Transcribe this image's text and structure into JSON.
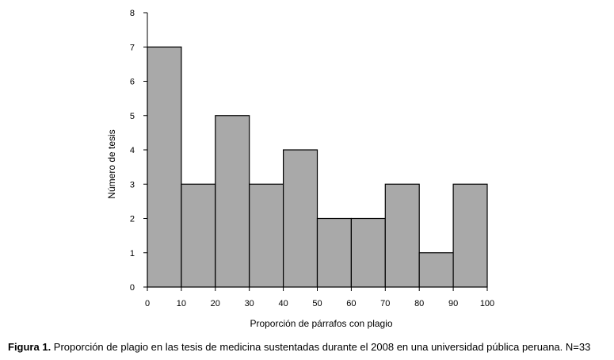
{
  "chart_data": {
    "type": "bar",
    "subtype": "histogram",
    "bin_edges": [
      0,
      10,
      20,
      30,
      40,
      50,
      60,
      70,
      80,
      90,
      100
    ],
    "values": [
      7,
      3,
      5,
      3,
      4,
      2,
      2,
      3,
      1,
      3
    ],
    "xlabel": "Proporción de párrafos con plagio",
    "ylabel": "Número de tesis",
    "xlim": [
      0,
      100
    ],
    "ylim": [
      0,
      8
    ],
    "x_ticks": [
      "0",
      "10",
      "20",
      "30",
      "40",
      "50",
      "60",
      "70",
      "80",
      "90",
      "100"
    ],
    "y_ticks": [
      "0",
      "1",
      "2",
      "3",
      "4",
      "5",
      "6",
      "7",
      "8"
    ],
    "bar_color": "#a9a9a9",
    "edge_color": "#000000",
    "grid": false,
    "legend": "none"
  },
  "caption": {
    "label": "Figura 1.",
    "text": " Proporción de plagio en las tesis de medicina sustentadas durante el 2008 en una universidad pública peruana. N=33"
  }
}
